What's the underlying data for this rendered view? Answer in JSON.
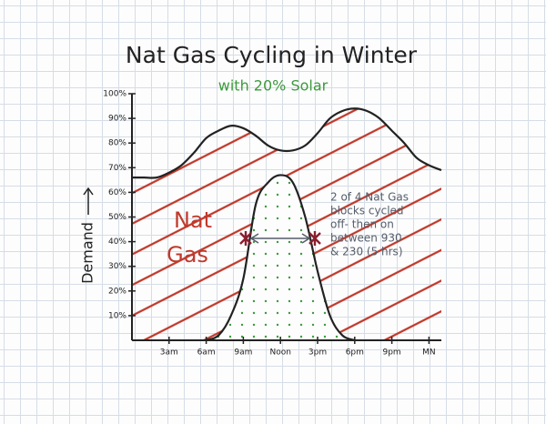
{
  "chart_data": {
    "type": "area",
    "title": "Nat Gas Cycling in Winter",
    "subtitle": "with 20% Solar",
    "subtitle_color": "#3d9a3d",
    "y_label": "Demand",
    "x": [
      0,
      1,
      2,
      3,
      4,
      5,
      6,
      7,
      8,
      9,
      10,
      11,
      12,
      13,
      14,
      15,
      16,
      17,
      18,
      19,
      20,
      21,
      22,
      23,
      24,
      25
    ],
    "series": [
      {
        "color": "#222222",
        "fill": "hatch",
        "fill_color": "#c0392b",
        "values": [
          66,
          66,
          66,
          68,
          71,
          76,
          82,
          85,
          87,
          86,
          83,
          79,
          77,
          77,
          79,
          84,
          90,
          93,
          94,
          93,
          90,
          85,
          80,
          74,
          71,
          69
        ]
      },
      {
        "color": "#222222",
        "fill": "dots",
        "fill_color": "#3d9a3d",
        "values": [
          null,
          null,
          null,
          null,
          null,
          null,
          0,
          2,
          10,
          25,
          55,
          64,
          67,
          64,
          50,
          28,
          10,
          2,
          0,
          null,
          null,
          null,
          null,
          null,
          null,
          null
        ]
      }
    ],
    "xlim": [
      0,
      25
    ],
    "ylim": [
      0,
      100
    ],
    "xticks": [
      {
        "value": 3,
        "label": "3am"
      },
      {
        "value": 6,
        "label": "6am"
      },
      {
        "value": 9,
        "label": "9am"
      },
      {
        "value": 12,
        "label": "Noon"
      },
      {
        "value": 15,
        "label": "3pm"
      },
      {
        "value": 18,
        "label": "6pm"
      },
      {
        "value": 21,
        "label": "9pm"
      },
      {
        "value": 24,
        "label": "MN"
      }
    ],
    "yticks": [
      {
        "value": 10,
        "label": "10%"
      },
      {
        "value": 20,
        "label": "20%"
      },
      {
        "value": 30,
        "label": "30%"
      },
      {
        "value": 40,
        "label": "40%"
      },
      {
        "value": 50,
        "label": "50%"
      },
      {
        "value": 60,
        "label": "60%"
      },
      {
        "value": 70,
        "label": "70%"
      },
      {
        "value": 80,
        "label": "80%"
      },
      {
        "value": 90,
        "label": "90%"
      },
      {
        "value": 100,
        "label": "100%"
      }
    ],
    "annotations": [
      {
        "lines": [
          "Nat",
          "Gas"
        ],
        "color": "#c0392b"
      },
      {
        "lines": [
          "2 of 4 Nat Gas",
          "blocks cycled",
          "off- then on",
          "between 930",
          "& 230 (5 hrs)"
        ],
        "color": "#555d6a"
      }
    ]
  }
}
